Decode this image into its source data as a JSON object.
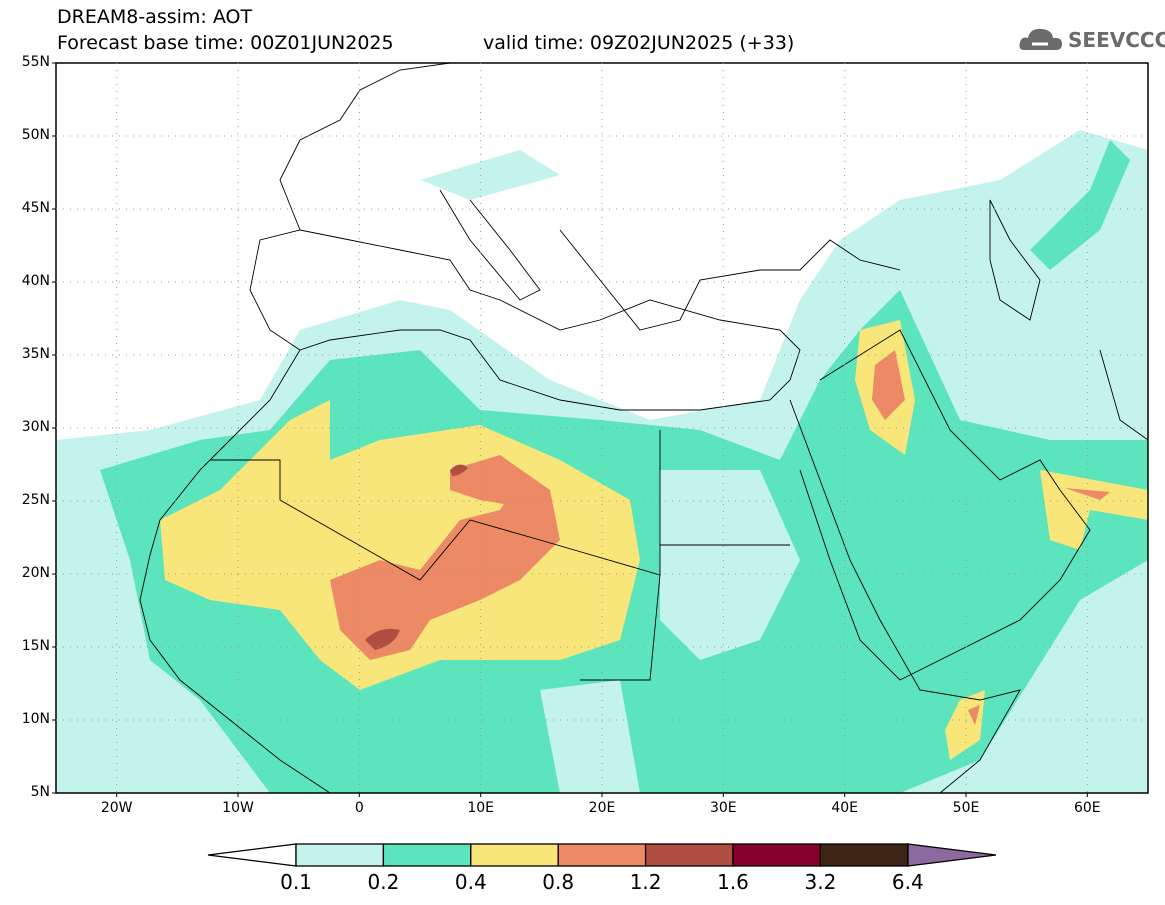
{
  "header": {
    "title": "DREAM8-assim: AOT",
    "base_time": "Forecast base time: 00Z01JUN2025",
    "valid_time": "valid time: 09Z02JUN2025 (+33)"
  },
  "logo": {
    "text": "SEEVCCC",
    "icon": "cloud-icon"
  },
  "axes": {
    "lat_labels": [
      "55N",
      "50N",
      "45N",
      "40N",
      "35N",
      "30N",
      "25N",
      "20N",
      "15N",
      "10N",
      "5N"
    ],
    "lon_labels": [
      "20W",
      "10W",
      "0",
      "10E",
      "20E",
      "30E",
      "40E",
      "50E",
      "60E"
    ]
  },
  "colorbar": {
    "labels": [
      "0.1",
      "0.2",
      "0.4",
      "0.8",
      "1.2",
      "1.6",
      "3.2",
      "6.4"
    ],
    "colors": [
      "#ffffff",
      "#c4f2ec",
      "#5ce4bd",
      "#f8e67a",
      "#ec8a66",
      "#b04e42",
      "#86002e",
      "#3e2414",
      "#8c6aa0"
    ]
  }
}
